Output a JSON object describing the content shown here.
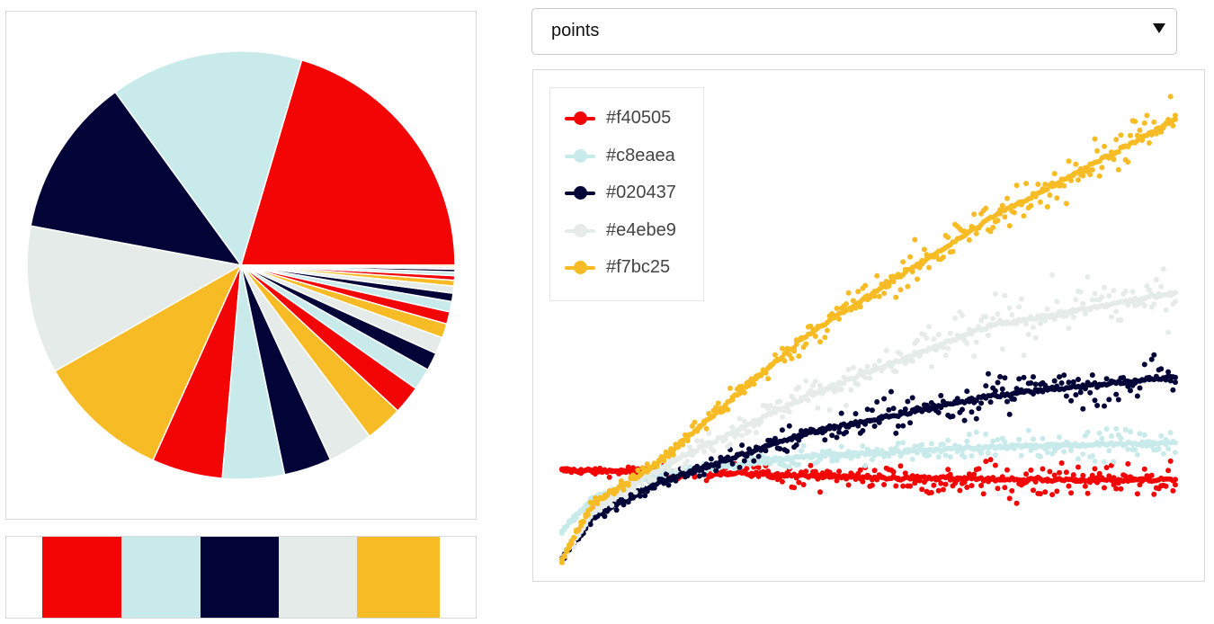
{
  "palette": [
    "#f40505",
    "#c8eaea",
    "#020437",
    "#e4ebe9",
    "#f7bc25"
  ],
  "dropdown": {
    "selected": "points"
  },
  "chart_data": [
    {
      "type": "pie",
      "slice_color_indices": [
        0,
        1,
        2,
        3,
        4,
        0,
        1,
        2,
        3,
        4,
        0,
        1,
        2,
        3,
        4,
        0,
        1,
        2,
        3,
        4,
        0,
        1,
        2,
        3,
        4
      ],
      "values": [
        21.0,
        15.0,
        12.4,
        11.5,
        10.3,
        5.5,
        4.8,
        3.7,
        3.5,
        2.9,
        2.2,
        1.7,
        1.4,
        1.3,
        1.1,
        0.95,
        0.8,
        0.65,
        0.55,
        0.45,
        0.35,
        0.28,
        0.22,
        0.17,
        0.13
      ]
    },
    {
      "type": "scatter",
      "legend_placement": "top-left",
      "grid": false,
      "legend": [
        "#f40505",
        "#c8eaea",
        "#020437",
        "#e4ebe9",
        "#f7bc25"
      ],
      "xlim": [
        0,
        1
      ],
      "ylim": [
        0,
        1
      ],
      "series": [
        {
          "color": "#f40505",
          "trend": [
            [
              0,
              0.19
            ],
            [
              0.25,
              0.185
            ],
            [
              0.5,
              0.175
            ],
            [
              0.75,
              0.17
            ],
            [
              1.0,
              0.17
            ]
          ],
          "spread": 0.04
        },
        {
          "color": "#c8eaea",
          "trend": [
            [
              0,
              0.06
            ],
            [
              0.05,
              0.13
            ],
            [
              0.15,
              0.18
            ],
            [
              0.4,
              0.22
            ],
            [
              0.7,
              0.24
            ],
            [
              1.0,
              0.25
            ]
          ],
          "spread": 0.03
        },
        {
          "color": "#020437",
          "trend": [
            [
              0,
              0.0
            ],
            [
              0.05,
              0.09
            ],
            [
              0.15,
              0.16
            ],
            [
              0.4,
              0.27
            ],
            [
              0.7,
              0.35
            ],
            [
              1.0,
              0.39
            ]
          ],
          "spread": 0.05
        },
        {
          "color": "#e4ebe9",
          "trend": [
            [
              0,
              0.0
            ],
            [
              0.05,
              0.1
            ],
            [
              0.15,
              0.19
            ],
            [
              0.4,
              0.35
            ],
            [
              0.7,
              0.5
            ],
            [
              1.0,
              0.57
            ]
          ],
          "spread": 0.06
        },
        {
          "color": "#f7bc25",
          "trend": [
            [
              0,
              0.0
            ],
            [
              0.05,
              0.12
            ],
            [
              0.15,
              0.2
            ],
            [
              0.4,
              0.48
            ],
            [
              0.7,
              0.73
            ],
            [
              1.0,
              0.94
            ]
          ],
          "spread": 0.05
        }
      ]
    }
  ]
}
